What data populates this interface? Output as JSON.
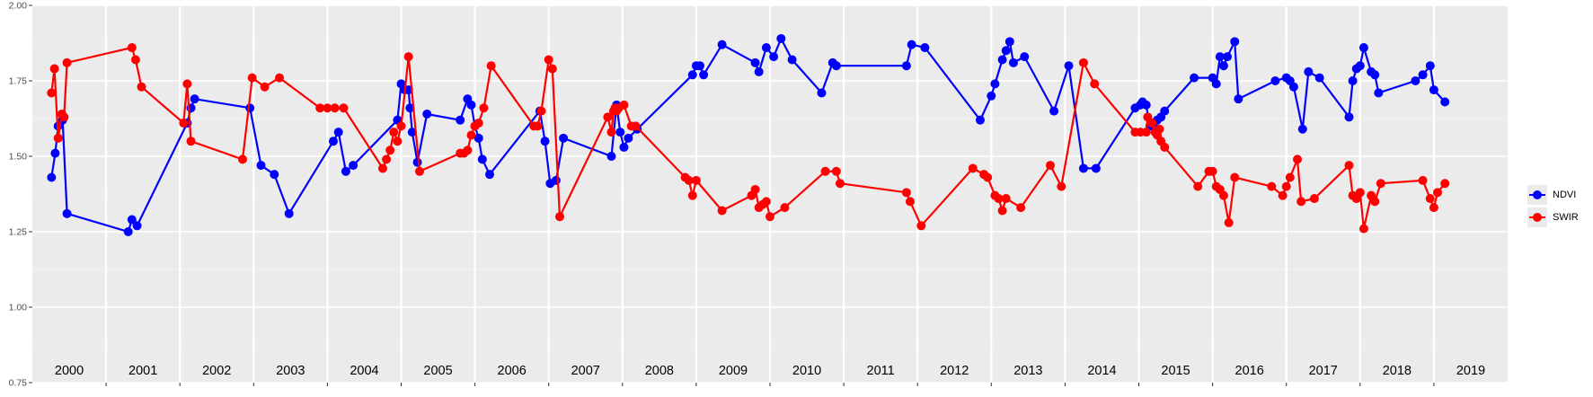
{
  "chart_data": {
    "type": "line",
    "title": "",
    "xlabel": "",
    "ylabel": "",
    "xlim": [
      2000.0,
      2020.0
    ],
    "ylim": [
      0.75,
      2.0
    ],
    "y_ticks": [
      "0.75",
      "1.00",
      "1.25",
      "1.50",
      "1.75",
      "2.00"
    ],
    "year_labels": [
      "2000",
      "2001",
      "2002",
      "2003",
      "2004",
      "2005",
      "2006",
      "2007",
      "2008",
      "2009",
      "2010",
      "2011",
      "2012",
      "2013",
      "2014",
      "2015",
      "2016",
      "2017",
      "2018",
      "2019"
    ],
    "grid": true,
    "legend_position": "right",
    "series": [
      {
        "name": "NDVI",
        "color": "#0000ff",
        "points": [
          [
            2000.26,
            1.43
          ],
          [
            2000.31,
            1.51
          ],
          [
            2000.35,
            1.6
          ],
          [
            2000.41,
            1.62
          ],
          [
            2000.47,
            1.31
          ],
          [
            2001.3,
            1.25
          ],
          [
            2001.35,
            1.29
          ],
          [
            2001.42,
            1.27
          ],
          [
            2002.1,
            1.61
          ],
          [
            2002.15,
            1.66
          ],
          [
            2002.2,
            1.69
          ],
          [
            2002.95,
            1.66
          ],
          [
            2003.1,
            1.47
          ],
          [
            2003.28,
            1.44
          ],
          [
            2003.48,
            1.31
          ],
          [
            2004.08,
            1.55
          ],
          [
            2004.15,
            1.58
          ],
          [
            2004.25,
            1.45
          ],
          [
            2004.35,
            1.47
          ],
          [
            2004.95,
            1.62
          ],
          [
            2005.0,
            1.74
          ],
          [
            2005.05,
            1.72
          ],
          [
            2005.1,
            1.72
          ],
          [
            2005.12,
            1.66
          ],
          [
            2005.15,
            1.58
          ],
          [
            2005.22,
            1.48
          ],
          [
            2005.35,
            1.64
          ],
          [
            2005.8,
            1.62
          ],
          [
            2005.9,
            1.69
          ],
          [
            2005.95,
            1.67
          ],
          [
            2006.0,
            1.6
          ],
          [
            2006.05,
            1.56
          ],
          [
            2006.1,
            1.49
          ],
          [
            2006.2,
            1.44
          ],
          [
            2006.88,
            1.65
          ],
          [
            2006.95,
            1.55
          ],
          [
            2007.02,
            1.41
          ],
          [
            2007.1,
            1.42
          ],
          [
            2007.2,
            1.56
          ],
          [
            2007.85,
            1.5
          ],
          [
            2007.92,
            1.67
          ],
          [
            2007.97,
            1.58
          ],
          [
            2008.02,
            1.53
          ],
          [
            2008.08,
            1.56
          ],
          [
            2008.2,
            1.59
          ],
          [
            2008.95,
            1.77
          ],
          [
            2009.0,
            1.8
          ],
          [
            2009.05,
            1.8
          ],
          [
            2009.1,
            1.77
          ],
          [
            2009.35,
            1.87
          ],
          [
            2009.8,
            1.81
          ],
          [
            2009.85,
            1.78
          ],
          [
            2009.95,
            1.86
          ],
          [
            2010.05,
            1.83
          ],
          [
            2010.15,
            1.89
          ],
          [
            2010.3,
            1.82
          ],
          [
            2010.7,
            1.71
          ],
          [
            2010.85,
            1.81
          ],
          [
            2010.9,
            1.8
          ],
          [
            2011.85,
            1.8
          ],
          [
            2011.92,
            1.87
          ],
          [
            2012.1,
            1.86
          ],
          [
            2012.85,
            1.62
          ],
          [
            2013.0,
            1.7
          ],
          [
            2013.05,
            1.74
          ],
          [
            2013.15,
            1.82
          ],
          [
            2013.2,
            1.85
          ],
          [
            2013.25,
            1.88
          ],
          [
            2013.3,
            1.81
          ],
          [
            2013.45,
            1.83
          ],
          [
            2013.85,
            1.65
          ],
          [
            2014.05,
            1.8
          ],
          [
            2014.25,
            1.46
          ],
          [
            2014.42,
            1.46
          ],
          [
            2014.95,
            1.66
          ],
          [
            2015.02,
            1.67
          ],
          [
            2015.05,
            1.68
          ],
          [
            2015.1,
            1.67
          ],
          [
            2015.15,
            1.6
          ],
          [
            2015.2,
            1.61
          ],
          [
            2015.25,
            1.62
          ],
          [
            2015.3,
            1.63
          ],
          [
            2015.35,
            1.65
          ],
          [
            2015.75,
            1.76
          ],
          [
            2016.0,
            1.76
          ],
          [
            2016.05,
            1.74
          ],
          [
            2016.1,
            1.83
          ],
          [
            2016.15,
            1.8
          ],
          [
            2016.2,
            1.83
          ],
          [
            2016.3,
            1.88
          ],
          [
            2016.35,
            1.69
          ],
          [
            2016.85,
            1.75
          ],
          [
            2017.0,
            1.76
          ],
          [
            2017.05,
            1.75
          ],
          [
            2017.1,
            1.73
          ],
          [
            2017.22,
            1.59
          ],
          [
            2017.3,
            1.78
          ],
          [
            2017.45,
            1.76
          ],
          [
            2017.85,
            1.63
          ],
          [
            2017.9,
            1.75
          ],
          [
            2017.95,
            1.79
          ],
          [
            2018.0,
            1.8
          ],
          [
            2018.05,
            1.86
          ],
          [
            2018.15,
            1.78
          ],
          [
            2018.2,
            1.77
          ],
          [
            2018.25,
            1.71
          ],
          [
            2018.75,
            1.75
          ],
          [
            2018.85,
            1.77
          ],
          [
            2018.95,
            1.8
          ],
          [
            2019.0,
            1.72
          ],
          [
            2019.15,
            1.68
          ]
        ]
      },
      {
        "name": "SWIR",
        "color": "#ff0000",
        "points": [
          [
            2000.26,
            1.71
          ],
          [
            2000.3,
            1.79
          ],
          [
            2000.35,
            1.56
          ],
          [
            2000.4,
            1.64
          ],
          [
            2000.43,
            1.63
          ],
          [
            2000.47,
            1.81
          ],
          [
            2001.35,
            1.86
          ],
          [
            2001.4,
            1.82
          ],
          [
            2001.48,
            1.73
          ],
          [
            2002.05,
            1.61
          ],
          [
            2002.1,
            1.74
          ],
          [
            2002.15,
            1.55
          ],
          [
            2002.85,
            1.49
          ],
          [
            2002.98,
            1.76
          ],
          [
            2003.15,
            1.73
          ],
          [
            2003.35,
            1.76
          ],
          [
            2003.9,
            1.66
          ],
          [
            2004.0,
            1.66
          ],
          [
            2004.1,
            1.66
          ],
          [
            2004.22,
            1.66
          ],
          [
            2004.75,
            1.46
          ],
          [
            2004.8,
            1.49
          ],
          [
            2004.85,
            1.52
          ],
          [
            2004.9,
            1.58
          ],
          [
            2004.95,
            1.55
          ],
          [
            2005.0,
            1.6
          ],
          [
            2005.1,
            1.83
          ],
          [
            2005.25,
            1.45
          ],
          [
            2005.8,
            1.51
          ],
          [
            2005.85,
            1.51
          ],
          [
            2005.9,
            1.52
          ],
          [
            2005.95,
            1.57
          ],
          [
            2006.0,
            1.6
          ],
          [
            2006.05,
            1.61
          ],
          [
            2006.12,
            1.66
          ],
          [
            2006.22,
            1.8
          ],
          [
            2006.8,
            1.6
          ],
          [
            2006.85,
            1.6
          ],
          [
            2006.9,
            1.65
          ],
          [
            2007.0,
            1.82
          ],
          [
            2007.05,
            1.79
          ],
          [
            2007.15,
            1.3
          ],
          [
            2007.8,
            1.63
          ],
          [
            2007.85,
            1.58
          ],
          [
            2007.88,
            1.65
          ],
          [
            2007.9,
            1.66
          ],
          [
            2007.92,
            1.65
          ],
          [
            2007.95,
            1.66
          ],
          [
            2008.02,
            1.67
          ],
          [
            2008.12,
            1.6
          ],
          [
            2008.18,
            1.6
          ],
          [
            2008.85,
            1.43
          ],
          [
            2008.9,
            1.42
          ],
          [
            2008.95,
            1.37
          ],
          [
            2009.0,
            1.42
          ],
          [
            2009.35,
            1.32
          ],
          [
            2009.75,
            1.37
          ],
          [
            2009.8,
            1.39
          ],
          [
            2009.85,
            1.33
          ],
          [
            2009.9,
            1.34
          ],
          [
            2009.95,
            1.35
          ],
          [
            2010.0,
            1.3
          ],
          [
            2010.2,
            1.33
          ],
          [
            2010.75,
            1.45
          ],
          [
            2010.9,
            1.45
          ],
          [
            2010.95,
            1.41
          ],
          [
            2011.85,
            1.38
          ],
          [
            2011.9,
            1.35
          ],
          [
            2012.05,
            1.27
          ],
          [
            2012.75,
            1.46
          ],
          [
            2012.9,
            1.44
          ],
          [
            2012.95,
            1.43
          ],
          [
            2013.05,
            1.37
          ],
          [
            2013.1,
            1.36
          ],
          [
            2013.15,
            1.32
          ],
          [
            2013.2,
            1.36
          ],
          [
            2013.4,
            1.33
          ],
          [
            2013.8,
            1.47
          ],
          [
            2013.95,
            1.4
          ],
          [
            2014.25,
            1.81
          ],
          [
            2014.4,
            1.74
          ],
          [
            2014.95,
            1.58
          ],
          [
            2015.02,
            1.58
          ],
          [
            2015.1,
            1.58
          ],
          [
            2015.12,
            1.63
          ],
          [
            2015.18,
            1.61
          ],
          [
            2015.22,
            1.58
          ],
          [
            2015.25,
            1.57
          ],
          [
            2015.28,
            1.59
          ],
          [
            2015.3,
            1.55
          ],
          [
            2015.35,
            1.53
          ],
          [
            2015.8,
            1.4
          ],
          [
            2015.95,
            1.45
          ],
          [
            2016.0,
            1.45
          ],
          [
            2016.05,
            1.4
          ],
          [
            2016.1,
            1.39
          ],
          [
            2016.15,
            1.37
          ],
          [
            2016.22,
            1.28
          ],
          [
            2016.3,
            1.43
          ],
          [
            2016.8,
            1.4
          ],
          [
            2016.95,
            1.37
          ],
          [
            2017.0,
            1.4
          ],
          [
            2017.05,
            1.43
          ],
          [
            2017.15,
            1.49
          ],
          [
            2017.2,
            1.35
          ],
          [
            2017.38,
            1.36
          ],
          [
            2017.85,
            1.47
          ],
          [
            2017.9,
            1.37
          ],
          [
            2017.95,
            1.36
          ],
          [
            2018.0,
            1.38
          ],
          [
            2018.05,
            1.26
          ],
          [
            2018.15,
            1.37
          ],
          [
            2018.2,
            1.35
          ],
          [
            2018.28,
            1.41
          ],
          [
            2018.85,
            1.42
          ],
          [
            2018.95,
            1.36
          ],
          [
            2019.0,
            1.33
          ],
          [
            2019.05,
            1.38
          ],
          [
            2019.15,
            1.41
          ]
        ]
      }
    ]
  }
}
